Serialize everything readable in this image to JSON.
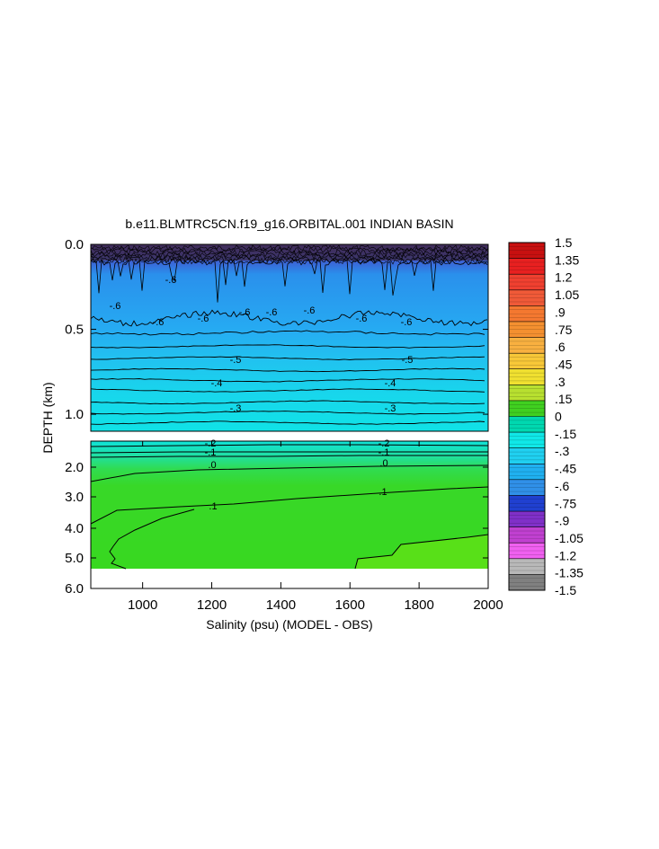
{
  "chart_data": {
    "type": "heatmap",
    "title": "b.e11.BLMTRC5CN.f19_g16.ORBITAL.001 INDIAN BASIN",
    "xlabel": "Salinity (psu) (MODEL - OBS)",
    "ylabel": "DEPTH (km)",
    "xlim": [
      850,
      2000
    ],
    "x_ticks": [
      "1000",
      "1200",
      "1400",
      "1600",
      "1800",
      "2000"
    ],
    "upper_panel": {
      "ylim": [
        0.0,
        1.1
      ],
      "y_ticks": [
        "0.0",
        "0.5",
        "1.0"
      ],
      "contour_labels": [
        "-.6",
        "-.6",
        "-.6",
        "-.6",
        "-.6",
        "-.6",
        "-.6",
        "-.6",
        "-.6",
        "-.5",
        "-.5",
        "-.4",
        "-.4",
        "-.3",
        "-.3"
      ]
    },
    "lower_panel": {
      "ylim": [
        1.1,
        6.0
      ],
      "y_ticks": [
        "2.0",
        "3.0",
        "4.0",
        "5.0",
        "6.0"
      ],
      "contour_labels": [
        "-.2",
        "-.2",
        "-.1",
        "-.1",
        ".0",
        ".0",
        ".1",
        ".1"
      ]
    },
    "colorbar": {
      "labels": [
        "1.5",
        "1.35",
        "1.2",
        "1.05",
        ".9",
        ".75",
        ".6",
        ".45",
        ".3",
        ".15",
        "0",
        "-.15",
        "-.3",
        "-.45",
        "-.6",
        "-.75",
        "-.9",
        "-1.05",
        "-1.2",
        "-1.35",
        "-1.5"
      ],
      "colors": [
        "#c81010",
        "#e82020",
        "#f04030",
        "#f05a38",
        "#f47830",
        "#f49030",
        "#f8b040",
        "#f8c838",
        "#f0e030",
        "#b8e030",
        "#40d020",
        "#00d8b0",
        "#10e8e8",
        "#20d0f0",
        "#20b0f0",
        "#3090e8",
        "#2040d0",
        "#8030c8",
        "#c040d0",
        "#f060f0",
        "#b8b8b8",
        "#808080"
      ]
    }
  }
}
